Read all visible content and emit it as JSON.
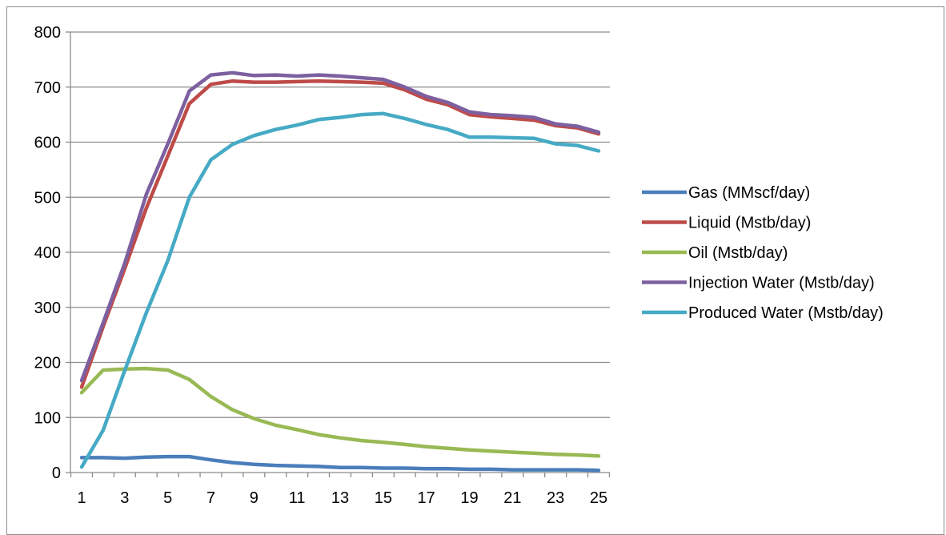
{
  "chart_data": {
    "type": "line",
    "title": "",
    "xlabel": "",
    "ylabel": "",
    "x": [
      1,
      2,
      3,
      4,
      5,
      6,
      7,
      8,
      9,
      10,
      11,
      12,
      13,
      14,
      15,
      16,
      17,
      18,
      19,
      20,
      21,
      22,
      23,
      24,
      25
    ],
    "x_tick_labels": [
      "1",
      "3",
      "5",
      "7",
      "9",
      "11",
      "13",
      "15",
      "17",
      "19",
      "21",
      "23",
      "25"
    ],
    "x_tick_values": [
      1,
      3,
      5,
      7,
      9,
      11,
      13,
      15,
      17,
      19,
      21,
      23,
      25
    ],
    "ylim": [
      0,
      800
    ],
    "y_ticks": [
      0,
      100,
      200,
      300,
      400,
      500,
      600,
      700,
      800
    ],
    "grid": true,
    "legend_position": "right",
    "series": [
      {
        "name": "Gas (MMscf/day)",
        "color": "#4a7ebb",
        "values": [
          27,
          27,
          26,
          28,
          29,
          29,
          23,
          18,
          15,
          13,
          12,
          11,
          9,
          9,
          8,
          8,
          7,
          7,
          6,
          6,
          5,
          5,
          5,
          5,
          4
        ]
      },
      {
        "name": "Liquid (Mstb/day)",
        "color": "#be4b48",
        "values": [
          155,
          265,
          370,
          480,
          575,
          670,
          705,
          711,
          709,
          709,
          710,
          711,
          710,
          709,
          707,
          695,
          678,
          668,
          650,
          646,
          643,
          640,
          630,
          626,
          615
        ]
      },
      {
        "name": "Oil (Mstb/day)",
        "color": "#98b954",
        "values": [
          145,
          186,
          188,
          189,
          186,
          169,
          138,
          114,
          98,
          86,
          78,
          69,
          63,
          58,
          55,
          51,
          47,
          44,
          41,
          39,
          37,
          35,
          33,
          32,
          30
        ]
      },
      {
        "name": "Injection Water (Mstb/day)",
        "color": "#7d60a0",
        "values": [
          167,
          272,
          380,
          505,
          597,
          693,
          722,
          726,
          721,
          722,
          720,
          722,
          720,
          717,
          714,
          700,
          683,
          672,
          655,
          650,
          648,
          645,
          633,
          629,
          618
        ]
      },
      {
        "name": "Produced Water (Mstb/day)",
        "color": "#46aac5",
        "values": [
          10,
          77,
          185,
          290,
          385,
          500,
          568,
          596,
          612,
          623,
          631,
          641,
          645,
          650,
          652,
          643,
          632,
          623,
          609,
          609,
          608,
          607,
          597,
          594,
          584
        ]
      }
    ]
  }
}
